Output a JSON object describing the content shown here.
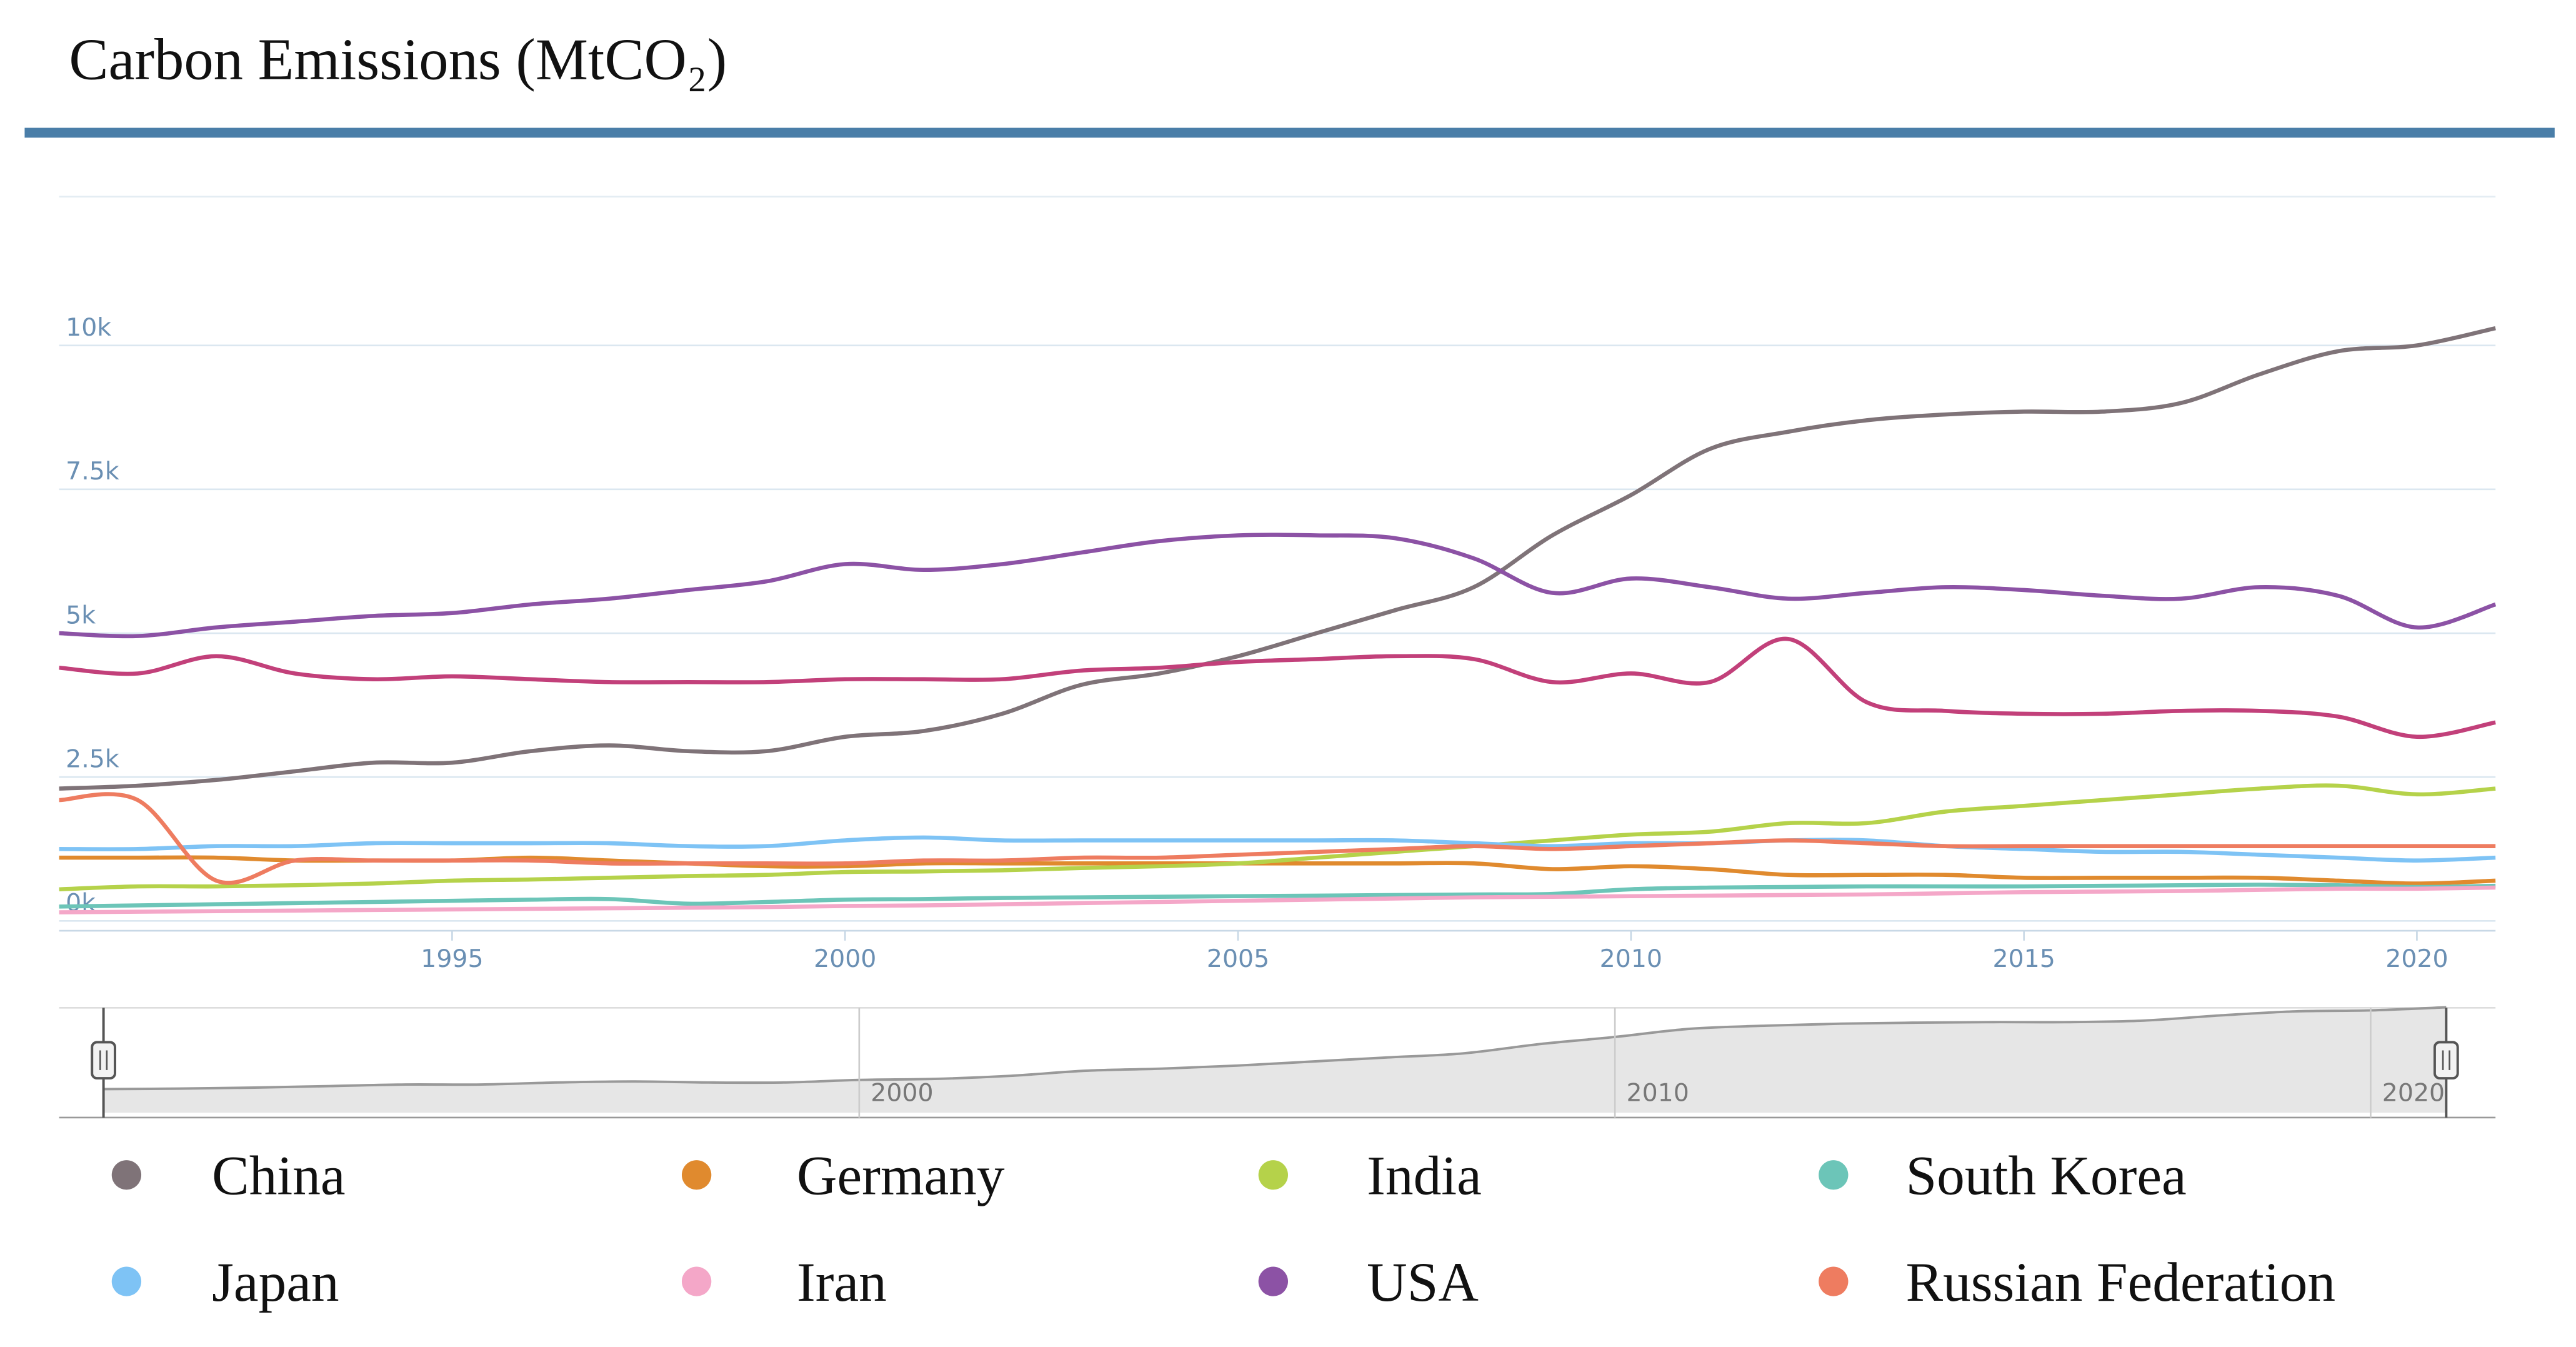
{
  "chart_data": {
    "type": "line",
    "title": "Carbon Emissions (MtCO₂)",
    "x": [
      1990,
      1991,
      1992,
      1993,
      1994,
      1995,
      1996,
      1997,
      1998,
      1999,
      2000,
      2001,
      2002,
      2003,
      2004,
      2005,
      2006,
      2007,
      2008,
      2009,
      2010,
      2011,
      2012,
      2013,
      2014,
      2015,
      2016,
      2017,
      2018,
      2019,
      2020,
      2021
    ],
    "xlim": [
      1990,
      2021
    ],
    "xticks": [
      1995,
      2000,
      2005,
      2010,
      2015,
      2020
    ],
    "ylim": [
      0,
      12500
    ],
    "yticks": [
      {
        "value": 0,
        "label": "0k"
      },
      {
        "value": 2500,
        "label": "2.5k"
      },
      {
        "value": 5000,
        "label": "5k"
      },
      {
        "value": 7500,
        "label": "7.5k"
      },
      {
        "value": 10000,
        "label": "10k"
      }
    ],
    "grid": true,
    "series": [
      {
        "name": "China",
        "color": "#7f7378",
        "values": [
          2300,
          2350,
          2450,
          2600,
          2750,
          2750,
          2950,
          3050,
          2950,
          2950,
          3200,
          3300,
          3600,
          4100,
          4300,
          4600,
          5000,
          5400,
          5800,
          6700,
          7400,
          8200,
          8500,
          8700,
          8800,
          8850,
          8850,
          9000,
          9500,
          9900,
          10000,
          10300
        ]
      },
      {
        "name": "Germany",
        "color": "#e08a2e",
        "values": [
          1100,
          1100,
          1100,
          1050,
          1050,
          1050,
          1100,
          1050,
          1000,
          950,
          950,
          1000,
          1000,
          1000,
          1000,
          1000,
          1000,
          1000,
          1000,
          900,
          950,
          900,
          800,
          800,
          800,
          750,
          750,
          750,
          750,
          700,
          650,
          700
        ]
      },
      {
        "name": "India",
        "color": "#b5d24a",
        "values": [
          550,
          600,
          600,
          620,
          650,
          700,
          720,
          750,
          780,
          800,
          850,
          860,
          880,
          920,
          950,
          1000,
          1100,
          1200,
          1300,
          1400,
          1500,
          1550,
          1700,
          1700,
          1900,
          2000,
          2100,
          2200,
          2300,
          2350,
          2200,
          2300
        ]
      },
      {
        "name": "South Korea",
        "color": "#6cc5b8",
        "values": [
          250,
          270,
          290,
          310,
          330,
          350,
          370,
          380,
          300,
          330,
          370,
          380,
          400,
          410,
          420,
          430,
          440,
          450,
          460,
          470,
          550,
          580,
          590,
          600,
          600,
          600,
          610,
          620,
          630,
          620,
          590,
          610
        ]
      },
      {
        "name": "Japan",
        "color": "#7ec3f5",
        "values": [
          1250,
          1250,
          1300,
          1300,
          1350,
          1350,
          1350,
          1350,
          1300,
          1300,
          1400,
          1450,
          1400,
          1400,
          1400,
          1400,
          1400,
          1400,
          1350,
          1300,
          1350,
          1350,
          1400,
          1400,
          1300,
          1250,
          1200,
          1200,
          1150,
          1100,
          1050,
          1100
        ]
      },
      {
        "name": "Iran",
        "color": "#f4a7c8",
        "values": [
          150,
          160,
          170,
          180,
          190,
          200,
          210,
          220,
          230,
          240,
          260,
          270,
          290,
          310,
          330,
          350,
          370,
          390,
          410,
          420,
          430,
          440,
          450,
          460,
          480,
          500,
          510,
          520,
          540,
          560,
          560,
          580
        ]
      },
      {
        "name": "USA",
        "color": "#8c52a5",
        "values": [
          5000,
          4950,
          5100,
          5200,
          5300,
          5350,
          5500,
          5600,
          5750,
          5900,
          6200,
          6100,
          6200,
          6400,
          6600,
          6700,
          6700,
          6650,
          6300,
          5700,
          5950,
          5800,
          5600,
          5700,
          5800,
          5750,
          5650,
          5600,
          5800,
          5650,
          5100,
          5500
        ]
      },
      {
        "name": "Russian Federation",
        "color": "#ee7c60",
        "values": [
          2100,
          2100,
          700,
          1050,
          1050,
          1050,
          1050,
          1000,
          1000,
          1000,
          1000,
          1050,
          1050,
          1100,
          1100,
          1150,
          1200,
          1250,
          1300,
          1250,
          1300,
          1350,
          1400,
          1350,
          1300,
          1300,
          1300,
          1300,
          1300,
          1300,
          1300,
          1300
        ]
      },
      {
        "color": "#c2407a",
        "values": [
          4400,
          4300,
          4600,
          4300,
          4200,
          4250,
          4200,
          4150,
          4150,
          4150,
          4200,
          4200,
          4200,
          4350,
          4400,
          4500,
          4550,
          4600,
          4550,
          4150,
          4300,
          4150,
          4900,
          3800,
          3650,
          3600,
          3600,
          3650,
          3650,
          3550,
          3200,
          3450
        ]
      }
    ],
    "navigator_xticks": [
      2000,
      2010,
      2020
    ]
  }
}
